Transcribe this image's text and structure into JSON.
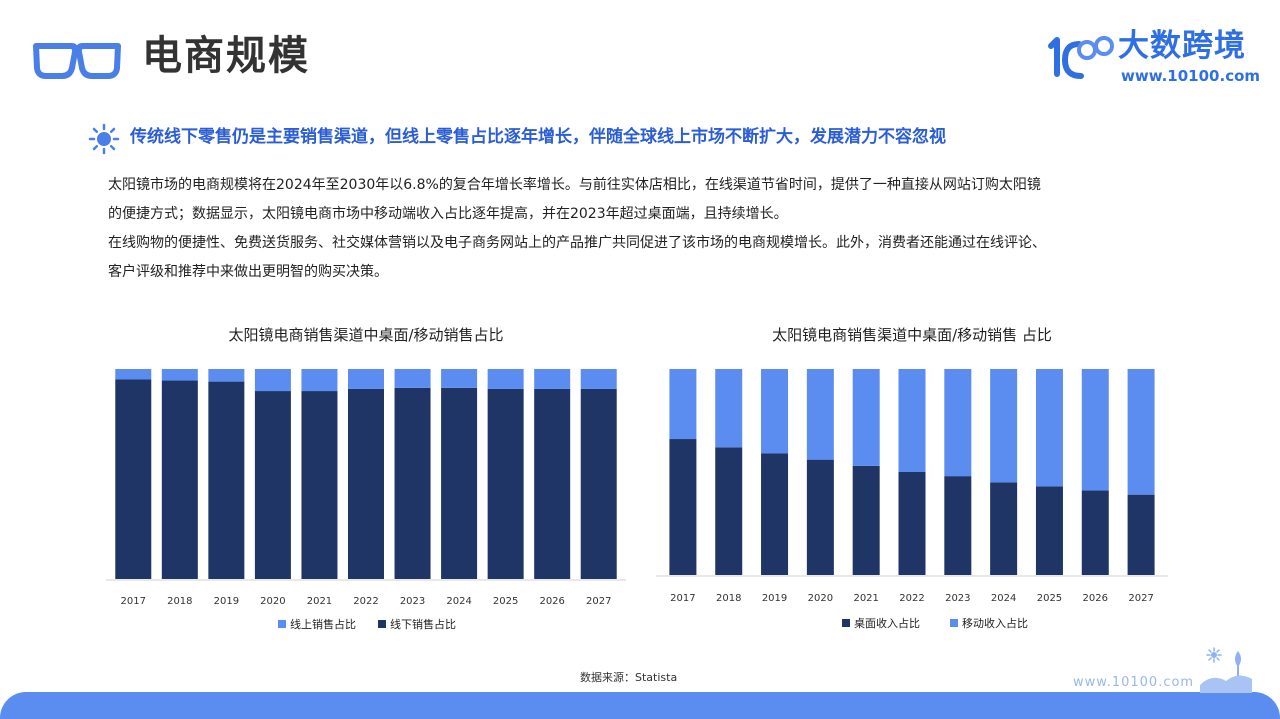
{
  "header": {
    "title": "电商规模",
    "logo_cn": "大数跨境",
    "logo_url": "www.10100.com",
    "glasses_icon": "glasses-icon",
    "logo_icon": "logo-10100-icon"
  },
  "headline": {
    "icon": "sun-icon",
    "text": "传统线下零售仍是主要销售渠道，但线上零售占比逐年增长，伴随全球线上市场不断扩大，发展潜力不容忽视"
  },
  "body": {
    "line1": "太阳镜市场的电商规模将在2024年至2030年以6.8%的复合年增长率增长。与前往实体店相比，在线渠道节省时间，提供了一种直接从网站订购太阳镜",
    "line2": "的便捷方式；数据显示，太阳镜电商市场中移动端收入占比逐年提高，并在2023年超过桌面端，且持续增长。",
    "line3": "在线购物的便捷性、免费送货服务、社交媒体营销以及电子商务网站上的产品推广共同促进了该市场的电商规模增长。此外，消费者还能通过在线评论、",
    "line4": "客户评级和推荐中来做出更明智的购买决策。"
  },
  "colors": {
    "dark_navy": "#1f3566",
    "accent_blue": "#5b8df0",
    "brand_blue": "#2f6fe4"
  },
  "chart_data": [
    {
      "type": "bar",
      "stacked": true,
      "title": "太阳镜电商销售渠道中桌面/移动销售占比",
      "categories": [
        "2017",
        "2018",
        "2019",
        "2020",
        "2021",
        "2022",
        "2023",
        "2024",
        "2025",
        "2026",
        "2027"
      ],
      "series": [
        {
          "name": "线上销售占比",
          "color": "#5b8df0",
          "values": [
            5,
            5.5,
            6,
            10.5,
            10.5,
            9.5,
            9,
            9,
            9.5,
            9.5,
            9.5
          ]
        },
        {
          "name": "线下销售占比",
          "color": "#1f3566",
          "values": [
            95,
            94.5,
            94,
            89.5,
            89.5,
            90.5,
            91,
            91,
            90.5,
            90.5,
            90.5
          ]
        }
      ],
      "ylim": [
        0,
        100
      ],
      "legend": "bottom"
    },
    {
      "type": "bar",
      "stacked": true,
      "title": "太阳镜电商销售渠道中桌面/移动销售 占比",
      "categories": [
        "2017",
        "2018",
        "2019",
        "2020",
        "2021",
        "2022",
        "2023",
        "2024",
        "2025",
        "2026",
        "2027"
      ],
      "series": [
        {
          "name": "桌面收入占比",
          "color": "#1f3566",
          "values": [
            66,
            62,
            59,
            56,
            53,
            50,
            48,
            45,
            43,
            41,
            39
          ]
        },
        {
          "name": "移动收入占比",
          "color": "#5b8df0",
          "values": [
            34,
            38,
            41,
            44,
            47,
            50,
            52,
            55,
            57,
            59,
            61
          ]
        }
      ],
      "ylim": [
        0,
        100
      ],
      "legend": "bottom"
    }
  ],
  "footer": {
    "source": "数据来源：Statista",
    "url": "www.10100.com",
    "scene_icon": "landscape-icon"
  }
}
